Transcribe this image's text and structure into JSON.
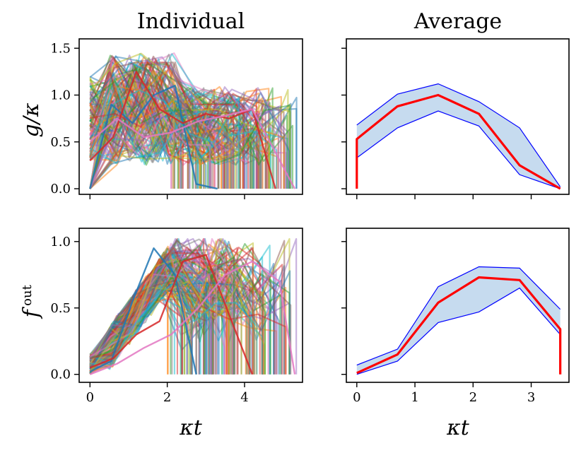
{
  "chart_data": [
    {
      "id": "g-individual",
      "type": "line",
      "title": "Individual",
      "ylabel": "g/κ",
      "xlim": [
        -0.28,
        5.5
      ],
      "ylim": [
        -0.06,
        1.6
      ],
      "xticks": [
        0,
        2,
        4
      ],
      "yticks": [
        0.0,
        0.5,
        1.0,
        1.5
      ],
      "ytick_labels": [
        "0.0",
        "0.5",
        "1.0",
        "1.5"
      ],
      "n_trajectories": 150,
      "representative_series": [
        {
          "name": "traj-a",
          "x": [
            0,
            0.55,
            1.1,
            1.65,
            2.2,
            2.75,
            3.3
          ],
          "y": [
            0.0,
            0.9,
            0.7,
            1.0,
            1.1,
            0.05,
            0.0
          ]
        },
        {
          "name": "traj-b",
          "x": [
            0,
            0.6,
            1.2,
            1.8,
            2.4,
            3.0,
            3.6,
            4.2,
            4.8
          ],
          "y": [
            0.3,
            0.55,
            1.25,
            0.85,
            0.7,
            0.8,
            0.75,
            0.85,
            0.0
          ]
        },
        {
          "name": "traj-c",
          "x": [
            0,
            0.7,
            1.4,
            2.1,
            2.8,
            3.5,
            4.2,
            5.3
          ],
          "y": [
            0.5,
            0.75,
            0.55,
            0.6,
            0.72,
            0.78,
            0.85,
            0.0
          ]
        }
      ]
    },
    {
      "id": "g-average",
      "type": "area",
      "title": "Average",
      "xlim": [
        -0.18,
        3.65
      ],
      "ylim": [
        -0.06,
        1.6
      ],
      "xticks": [
        0,
        1,
        2,
        3
      ],
      "yticks": [
        0.0,
        0.5,
        1.0,
        1.5
      ],
      "series": [
        {
          "name": "mean",
          "color": "#ff0000",
          "x": [
            0,
            0,
            0.7,
            1.4,
            2.1,
            2.8,
            3.5
          ],
          "y": [
            0.0,
            0.53,
            0.88,
            1.0,
            0.8,
            0.25,
            0.0
          ]
        },
        {
          "name": "upper",
          "color": "#0000ff",
          "x": [
            0,
            0.7,
            1.4,
            2.1,
            2.8,
            3.5
          ],
          "y": [
            0.68,
            1.01,
            1.12,
            0.93,
            0.65,
            0.02
          ]
        },
        {
          "name": "lower",
          "color": "#0000ff",
          "x": [
            0,
            0.7,
            1.4,
            2.1,
            2.8,
            3.5
          ],
          "y": [
            0.33,
            0.65,
            0.83,
            0.67,
            0.15,
            0.0
          ]
        }
      ]
    },
    {
      "id": "f-individual",
      "type": "line",
      "ylabel": "f",
      "ylabel_sup": "out",
      "xlabel": "κt",
      "xlim": [
        -0.28,
        5.5
      ],
      "ylim": [
        -0.06,
        1.1
      ],
      "xticks": [
        0,
        2,
        4
      ],
      "xtick_labels": [
        "0",
        "2",
        "4"
      ],
      "yticks": [
        0.0,
        0.5,
        1.0
      ],
      "ytick_labels": [
        "0.0",
        "0.5",
        "1.0"
      ],
      "n_trajectories": 150,
      "representative_series": [
        {
          "name": "traj-a",
          "x": [
            0,
            0.55,
            1.1,
            1.65,
            2.2,
            2.75
          ],
          "y": [
            0.02,
            0.1,
            0.55,
            0.95,
            0.75,
            0.0
          ]
        },
        {
          "name": "traj-b",
          "x": [
            0,
            0.6,
            1.2,
            1.8,
            2.4,
            3.0,
            3.6,
            4.2
          ],
          "y": [
            0.05,
            0.12,
            0.3,
            0.4,
            0.85,
            0.9,
            0.45,
            0.0
          ]
        },
        {
          "name": "traj-c",
          "x": [
            0,
            0.7,
            1.4,
            2.1,
            2.8,
            3.5,
            4.2,
            4.9,
            5.3
          ],
          "y": [
            0.0,
            0.08,
            0.2,
            0.3,
            0.5,
            0.75,
            0.85,
            0.7,
            0.0
          ]
        }
      ]
    },
    {
      "id": "f-average",
      "type": "area",
      "xlabel": "κt",
      "xlim": [
        -0.18,
        3.65
      ],
      "ylim": [
        -0.06,
        1.1
      ],
      "xticks": [
        0,
        1,
        2,
        3
      ],
      "xtick_labels": [
        "0",
        "1",
        "2",
        "3"
      ],
      "yticks": [
        0.0,
        0.5,
        1.0
      ],
      "series": [
        {
          "name": "mean",
          "color": "#ff0000",
          "x": [
            0,
            0.7,
            1.4,
            2.1,
            2.8,
            3.5,
            3.5
          ],
          "y": [
            0.01,
            0.15,
            0.54,
            0.73,
            0.71,
            0.34,
            0.0
          ]
        },
        {
          "name": "upper",
          "color": "#0000ff",
          "x": [
            0,
            0.7,
            1.4,
            2.1,
            2.8,
            3.5
          ],
          "y": [
            0.07,
            0.19,
            0.66,
            0.81,
            0.8,
            0.49
          ]
        },
        {
          "name": "lower",
          "color": "#0000ff",
          "x": [
            0,
            0.7,
            1.4,
            2.1,
            2.8,
            3.5
          ],
          "y": [
            0.0,
            0.1,
            0.39,
            0.47,
            0.65,
            0.3
          ]
        }
      ]
    }
  ],
  "colors": {
    "mean_line": "#ff0000",
    "band_edge": "#0000ff",
    "band_fill": "#c6dbef",
    "palette": [
      "#1f77b4",
      "#ff7f0e",
      "#2ca02c",
      "#d62728",
      "#9467bd",
      "#8c564b",
      "#e377c2",
      "#7f7f7f",
      "#bcbd22",
      "#17becf"
    ]
  }
}
